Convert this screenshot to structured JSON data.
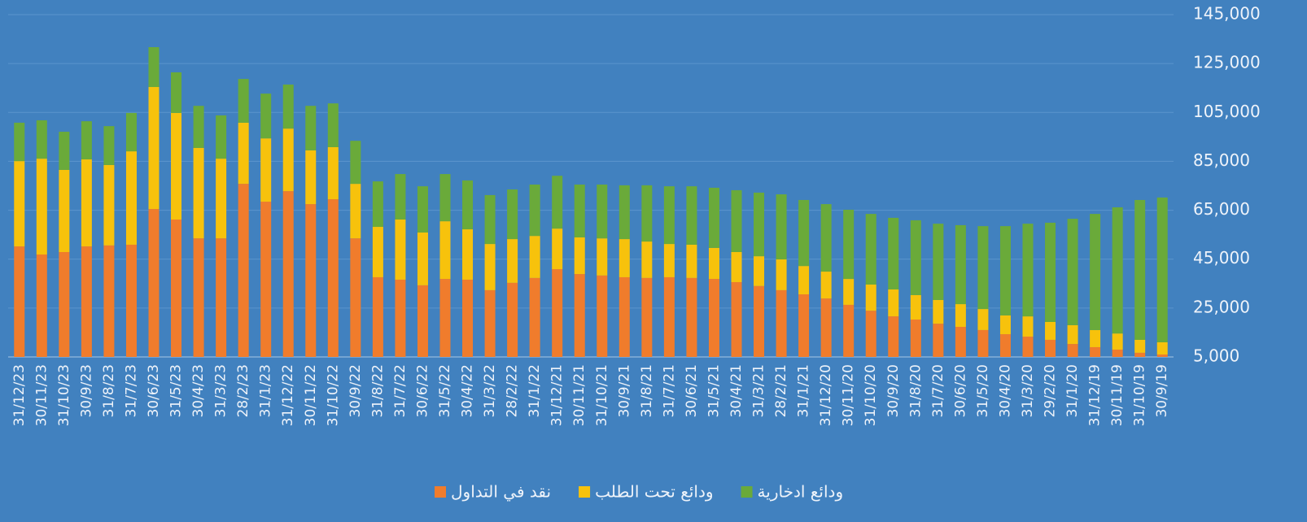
{
  "chart_data": {
    "type": "stacked_bar",
    "categories": [
      "31/12/23",
      "30/11/23",
      "31/10/23",
      "30/9/23",
      "31/8/23",
      "31/7/23",
      "30/6/23",
      "31/5/23",
      "30/4/23",
      "31/3/23",
      "28/2/23",
      "31/1/23",
      "31/12/22",
      "30/11/22",
      "31/10/22",
      "30/9/22",
      "31/8/22",
      "31/7/22",
      "30/6/22",
      "31/5/22",
      "30/4/22",
      "31/3/22",
      "28/2/22",
      "31/1/22",
      "31/12/21",
      "30/11/21",
      "31/10/21",
      "30/9/21",
      "31/8/21",
      "31/7/21",
      "30/6/21",
      "31/5/21",
      "30/4/21",
      "31/3/21",
      "28/2/21",
      "31/1/21",
      "31/12/20",
      "30/11/20",
      "31/10/20",
      "30/9/20",
      "31/8/20",
      "31/7/20",
      "30/6/20",
      "31/5/20",
      "30/4/20",
      "31/3/20",
      "29/2/20",
      "31/1/20",
      "31/12/19",
      "30/11/19",
      "31/10/19",
      "30/9/19"
    ],
    "series": [
      {
        "name": "نقد في التداول",
        "color": "#f07c2c",
        "values": [
          50200,
          46900,
          47900,
          50200,
          50600,
          50900,
          65500,
          61200,
          53500,
          53500,
          75800,
          68500,
          72800,
          67500,
          69500,
          53500,
          37600,
          36600,
          34300,
          36900,
          36600,
          32300,
          35300,
          37300,
          40900,
          38900,
          38300,
          37600,
          37300,
          37600,
          37300,
          36900,
          35600,
          34000,
          32300,
          30600,
          28900,
          26300,
          23900,
          21600,
          20300,
          18600,
          17300,
          16000,
          14300,
          13300,
          12000,
          10300,
          9000,
          8000,
          6700,
          6000
        ]
      },
      {
        "name": "ودائع تحت الطلب",
        "color": "#f7c20c",
        "values": [
          34900,
          39200,
          33600,
          35600,
          32900,
          38200,
          49900,
          43600,
          37000,
          32600,
          25000,
          25900,
          25600,
          22000,
          21300,
          22300,
          20600,
          24600,
          21600,
          23600,
          20600,
          18900,
          17900,
          17200,
          16600,
          15000,
          15200,
          15600,
          14900,
          13600,
          13600,
          12700,
          12300,
          12200,
          12600,
          11600,
          11000,
          10600,
          10700,
          11000,
          10000,
          9700,
          9300,
          8600,
          7700,
          8300,
          7300,
          7700,
          7000,
          6600,
          5300,
          5000
        ]
      },
      {
        "name": "ودائع ادخارية",
        "color": "#6aaa3a",
        "values": [
          15700,
          15700,
          15600,
          15600,
          15900,
          15700,
          16300,
          16600,
          17200,
          17700,
          17900,
          18300,
          18000,
          18200,
          17900,
          17600,
          18600,
          18600,
          18900,
          19300,
          20000,
          20000,
          20300,
          21000,
          21600,
          21600,
          22000,
          22000,
          23000,
          23600,
          23900,
          24600,
          25300,
          26000,
          26600,
          27000,
          27600,
          28300,
          28900,
          29300,
          30600,
          31200,
          32300,
          33900,
          36500,
          37900,
          40600,
          43500,
          47500,
          51600,
          57200,
          59200
        ]
      }
    ],
    "ylim": [
      5000,
      145000
    ],
    "yticks": [
      {
        "value": 5000,
        "label": "5,000"
      },
      {
        "value": 25000,
        "label": "25,000"
      },
      {
        "value": 45000,
        "label": "45,000"
      },
      {
        "value": 65000,
        "label": "65,000"
      },
      {
        "value": 85000,
        "label": "85,000"
      },
      {
        "value": 105000,
        "label": "105,000"
      },
      {
        "value": 125000,
        "label": "125,000"
      },
      {
        "value": 145000,
        "label": "145,000"
      }
    ],
    "grid": true,
    "legend": "bottom"
  }
}
